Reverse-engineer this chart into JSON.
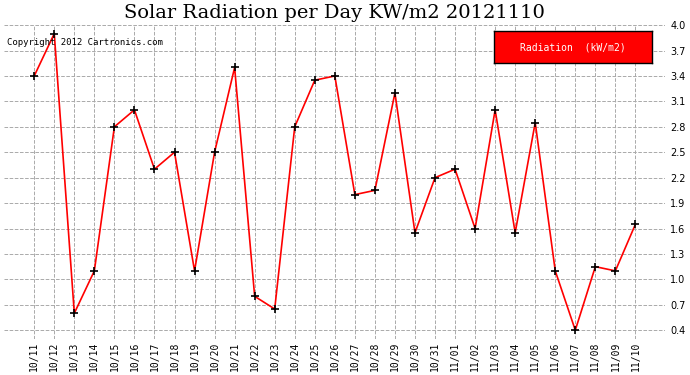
{
  "title": "Solar Radiation per Day KW/m2 20121110",
  "copyright_text": "Copyright 2012 Cartronics.com",
  "legend_label": "Radiation  (kW/m2)",
  "dates": [
    "10/11",
    "10/12",
    "10/13",
    "10/14",
    "10/15",
    "10/16",
    "10/17",
    "10/18",
    "10/19",
    "10/20",
    "10/21",
    "10/22",
    "10/23",
    "10/24",
    "10/25",
    "10/26",
    "10/27",
    "10/28",
    "10/29",
    "10/30",
    "10/31",
    "11/01",
    "11/02",
    "11/03",
    "11/04",
    "11/05",
    "11/06",
    "11/07",
    "11/08",
    "11/09",
    "11/10"
  ],
  "values": [
    3.4,
    3.9,
    0.6,
    1.1,
    2.8,
    3.0,
    2.3,
    2.5,
    1.1,
    2.5,
    3.5,
    0.8,
    0.65,
    2.8,
    3.35,
    3.4,
    2.0,
    2.05,
    3.2,
    1.55,
    2.2,
    2.3,
    1.6,
    3.0,
    1.55,
    2.85,
    1.1,
    0.4,
    1.15,
    1.1,
    1.65
  ],
  "line_color": "red",
  "marker": "+",
  "marker_color": "black",
  "grid_color": "#aaaaaa",
  "bg_color": "white",
  "ylim": [
    0.3,
    4.0
  ],
  "yticks": [
    0.4,
    0.7,
    1.0,
    1.3,
    1.6,
    1.9,
    2.2,
    2.5,
    2.8,
    3.1,
    3.4,
    3.7,
    4.0
  ],
  "title_fontsize": 14,
  "legend_bg": "red",
  "legend_text_color": "white"
}
